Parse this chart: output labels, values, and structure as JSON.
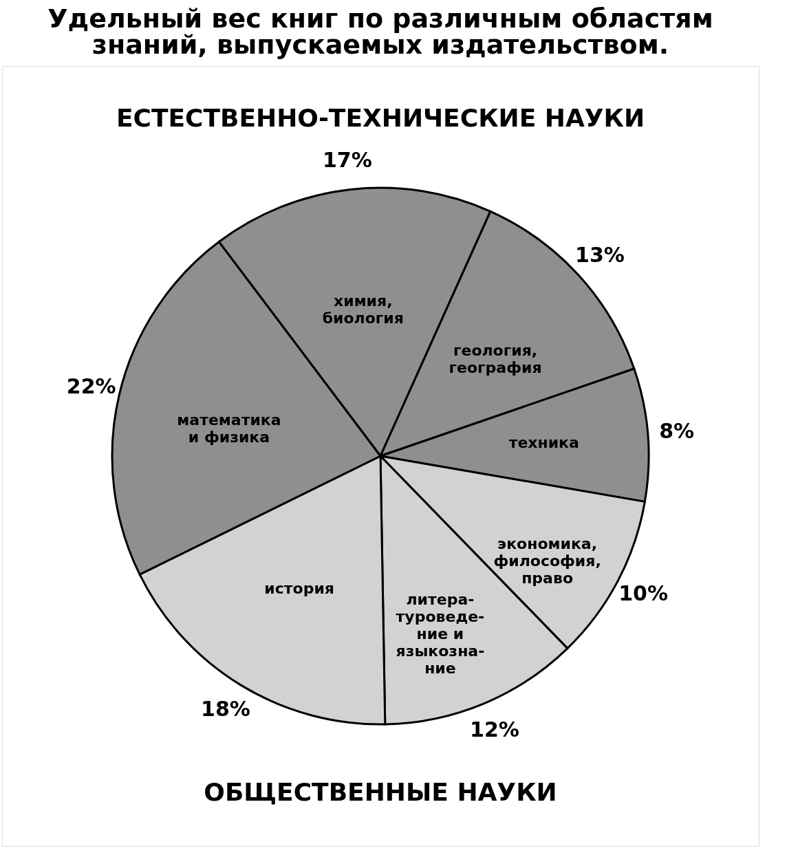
{
  "chart_data": {
    "type": "pie",
    "title": "Удельный вес книг по различным областям\nзнаний, выпускаемых издательством.",
    "categories": [
      "химия,\nбиология",
      "геология,\nгеография",
      "техника",
      "экономика,\nфилософия,\nправо",
      "литера-\nтуроведе-\nние и\nязыкозна-\nние",
      "история",
      "математика\nи физика"
    ],
    "values": [
      17,
      13,
      8,
      10,
      12,
      18,
      22
    ],
    "colors": [
      "#8f8f8f",
      "#8f8f8f",
      "#8f8f8f",
      "#d2d2d2",
      "#d2d2d2",
      "#d2d2d2",
      "#8f8f8f"
    ],
    "value_labels": [
      "17%",
      "13%",
      "8%",
      "10%",
      "12%",
      "18%",
      "22%"
    ],
    "annotations": [
      "ЕСТЕСТВЕННО-ТЕХНИЧЕСКИЕ НАУКИ",
      "ОБЩЕСТВЕННЫЕ НАУКИ"
    ]
  }
}
